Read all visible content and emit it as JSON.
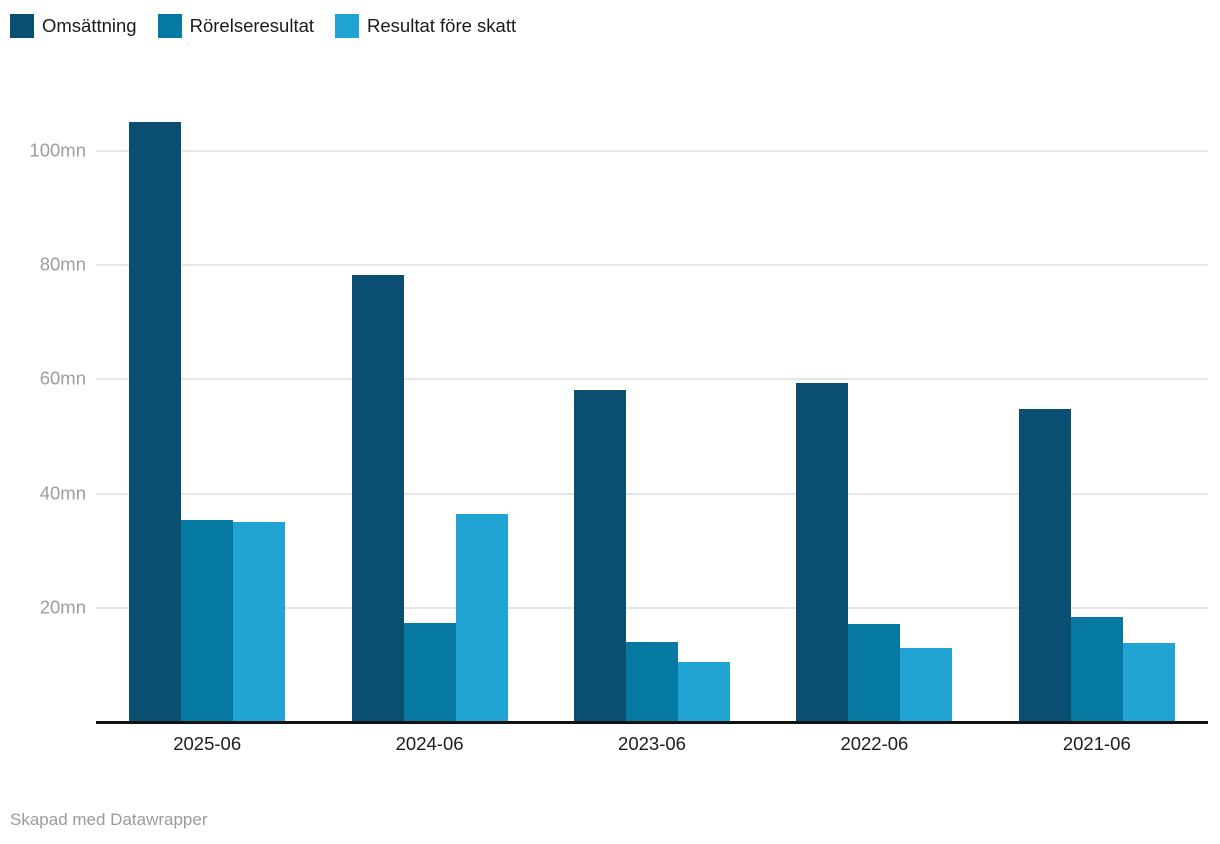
{
  "legend": {
    "items": [
      {
        "label": "Omsättning",
        "color": "#0a4e71"
      },
      {
        "label": "Rörelseresultat",
        "color": "#0679a3"
      },
      {
        "label": "Resultat före skatt",
        "color": "#21a3d3"
      }
    ]
  },
  "chart_data": {
    "type": "bar",
    "title": "",
    "xlabel": "",
    "ylabel": "",
    "unit": "mn",
    "categories": [
      "2025-06",
      "2024-06",
      "2023-06",
      "2022-06",
      "2021-06"
    ],
    "series": [
      {
        "name": "Omsättning",
        "color": "#0a4e71",
        "values": [
          105.1,
          78.3,
          58.1,
          59.3,
          54.8
        ]
      },
      {
        "name": "Rörelseresultat",
        "color": "#0679a3",
        "values": [
          35.4,
          17.3,
          14.0,
          17.2,
          18.3
        ]
      },
      {
        "name": "Resultat före skatt",
        "color": "#21a3d3",
        "values": [
          35.0,
          36.4,
          10.5,
          12.9,
          13.8
        ]
      }
    ],
    "y_ticks": [
      {
        "value": 20,
        "label": "20mn"
      },
      {
        "value": 40,
        "label": "40mn"
      },
      {
        "value": 60,
        "label": "60mn"
      },
      {
        "value": 80,
        "label": "80mn"
      },
      {
        "value": 100,
        "label": "100mn"
      }
    ],
    "ylim": [
      0,
      110
    ],
    "grid": true,
    "legend_position": "top-left"
  },
  "footer": {
    "credit": "Skapad med Datawrapper"
  }
}
